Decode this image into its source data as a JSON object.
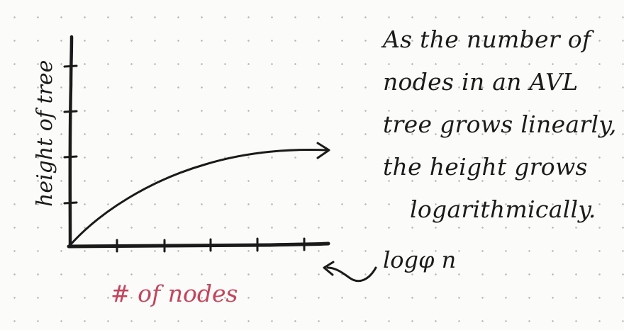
{
  "diagram": {
    "y_axis_label": "height of tree",
    "x_axis_label": "# of nodes",
    "curve_label": "logφ n",
    "colors": {
      "ink": "#1a1a1a",
      "x_label": "#c8435a",
      "paper": "#fbfbf9",
      "dots": "#b9b9b9"
    }
  },
  "annotation": {
    "lines": [
      "As the number of",
      "nodes in an AVL",
      "tree grows linearly,",
      "the height grows",
      "logarithmically."
    ]
  }
}
